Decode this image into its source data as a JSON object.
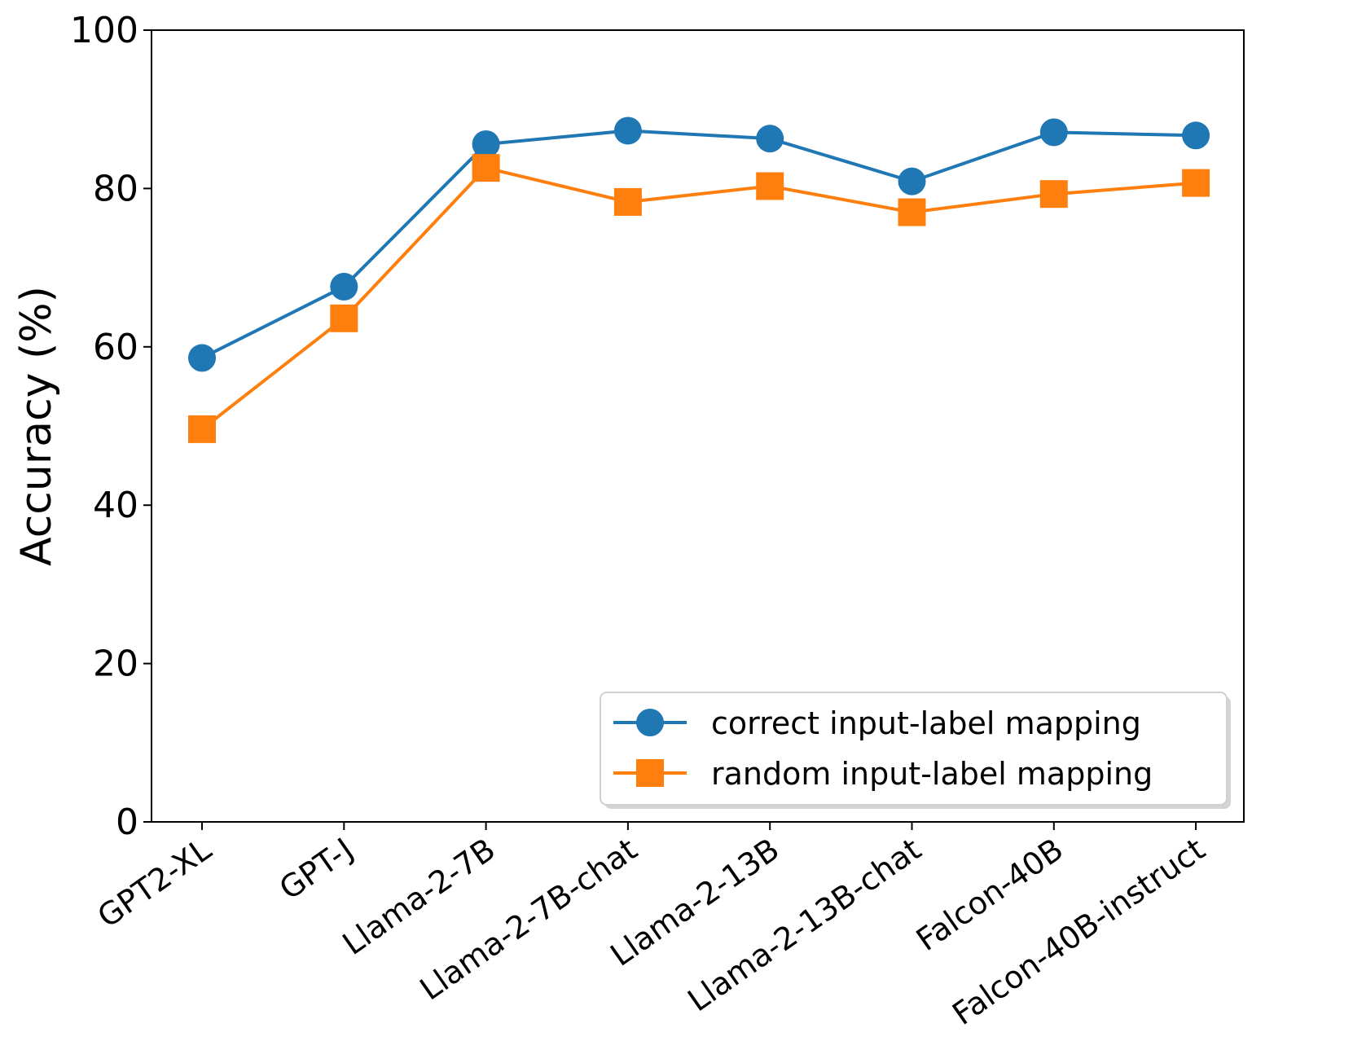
{
  "chart_data": {
    "type": "line",
    "title": "",
    "xlabel": "",
    "ylabel": "Accuracy (%)",
    "categories": [
      "GPT2-XL",
      "GPT-J",
      "Llama-2-7B",
      "Llama-2-7B-chat",
      "Llama-2-13B",
      "Llama-2-13B-chat",
      "Falcon-40B",
      "Falcon-40B-instruct"
    ],
    "series": [
      {
        "name": "correct input-label mapping",
        "color": "#1f77b4",
        "marker": "circle",
        "values": [
          58.6,
          67.6,
          85.6,
          87.3,
          86.3,
          80.9,
          87.1,
          86.7
        ]
      },
      {
        "name": "random input-label mapping",
        "color": "#ff7f0e",
        "marker": "square",
        "values": [
          49.6,
          63.6,
          82.6,
          78.3,
          80.3,
          77.0,
          79.3,
          80.7
        ]
      }
    ],
    "ylim": [
      0,
      100
    ],
    "yticks": [
      0,
      20,
      40,
      60,
      80,
      100
    ],
    "grid": false,
    "legend_position": "lower-right"
  }
}
